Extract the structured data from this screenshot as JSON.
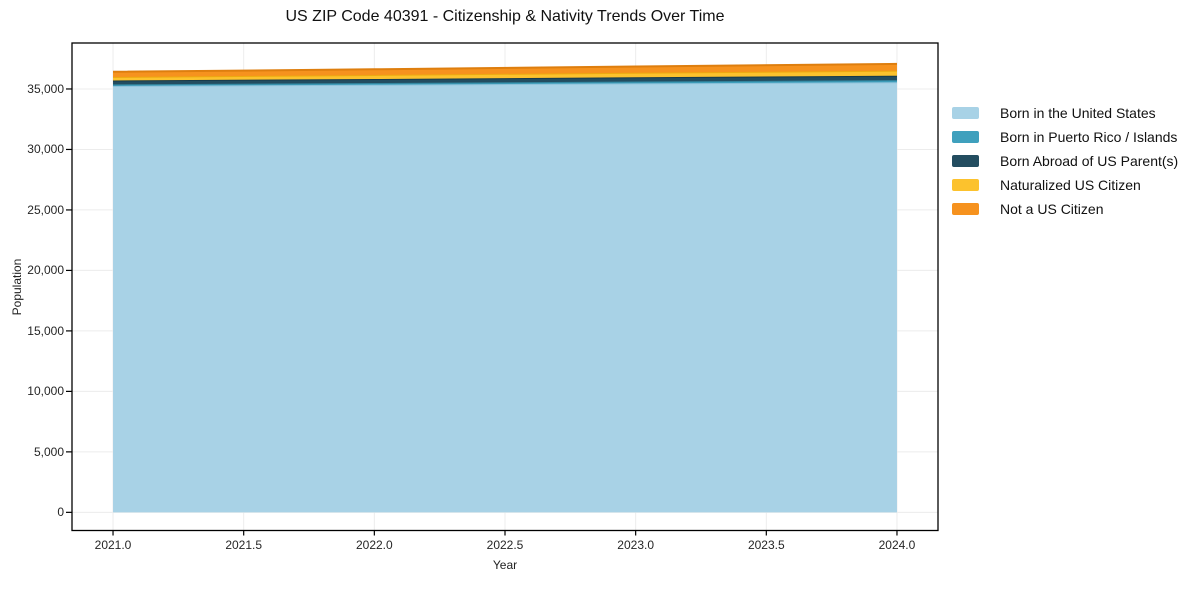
{
  "chart_data": {
    "type": "area",
    "stacked": true,
    "title": "US ZIP Code 40391 - Citizenship & Nativity Trends Over Time",
    "xlabel": "Year",
    "ylabel": "Population",
    "x": [
      2021,
      2022,
      2023,
      2024
    ],
    "series": [
      {
        "name": "Born in the United States",
        "values": [
          35250,
          35350,
          35460,
          35560
        ],
        "fill": "#a8d2e6",
        "line": "#8ec2da"
      },
      {
        "name": "Born in Puerto Rico / Islands",
        "values": [
          130,
          140,
          155,
          170
        ],
        "fill": "#3fa0bd",
        "line": "#32859e"
      },
      {
        "name": "Born Abroad of US Parent(s)",
        "values": [
          320,
          335,
          350,
          365
        ],
        "fill": "#234d60",
        "line": "#183a4a"
      },
      {
        "name": "Naturalized US Citizen",
        "values": [
          290,
          330,
          380,
          420
        ],
        "fill": "#fcc22d",
        "line": "#edaa10"
      },
      {
        "name": "Not a US Citizen",
        "values": [
          430,
          470,
          515,
          555
        ],
        "fill": "#f6921e",
        "line": "#de7e0e"
      }
    ],
    "x_ticks": [
      "2021.0",
      "2021.5",
      "2022.0",
      "2022.5",
      "2023.0",
      "2023.5",
      "2024.0"
    ],
    "x_tick_values": [
      2021,
      2021.5,
      2022,
      2022.5,
      2023,
      2023.5,
      2024
    ],
    "y_ticks": [
      "0",
      "5,000",
      "10,000",
      "15,000",
      "20,000",
      "25,000",
      "30,000",
      "35,000"
    ],
    "y_tick_values": [
      0,
      5000,
      10000,
      15000,
      20000,
      25000,
      30000,
      35000
    ],
    "xlim": [
      2020.843,
      2024.157
    ],
    "ylim": [
      -1500,
      38800
    ],
    "grid": true,
    "grid_color": "#ececec",
    "axis_color": "#000000",
    "legend_position": "right"
  }
}
